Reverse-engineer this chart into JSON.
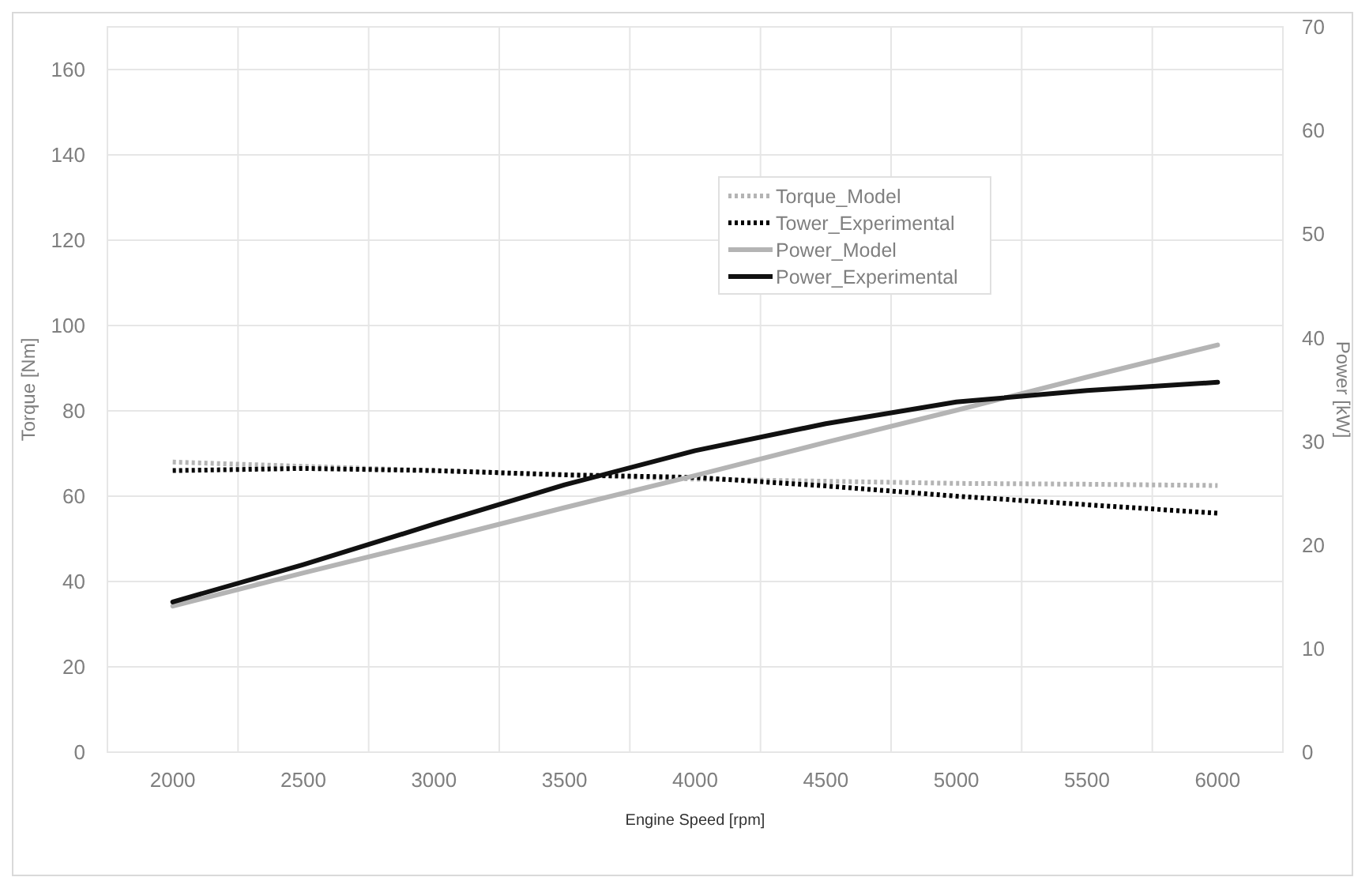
{
  "chart_data": {
    "type": "line",
    "xlabel": "Engine Speed [rpm]",
    "ylabel": "Torque [Nm]",
    "y2label": "Power [kW]",
    "categories": [
      "2000",
      "2500",
      "3000",
      "3500",
      "4000",
      "4500",
      "5000",
      "5500",
      "6000"
    ],
    "ylim": [
      0,
      170
    ],
    "yticks": [
      0,
      20,
      40,
      60,
      80,
      100,
      120,
      140,
      160
    ],
    "y2lim": [
      0,
      70
    ],
    "y2ticks": [
      0,
      10,
      20,
      30,
      40,
      50,
      60,
      70
    ],
    "grid": true,
    "legend": "top",
    "marker": "none",
    "series": [
      {
        "name": "Torque_Model",
        "color": "#b4b4b4",
        "line_style": "dotted",
        "values": [
          68,
          67,
          66,
          65,
          64,
          63.5,
          63,
          62.8,
          62.5
        ]
      },
      {
        "name": "Tower_Experimental",
        "color": "#000000",
        "line_style": "dotted",
        "values": [
          66,
          66.5,
          66,
          65,
          64.4,
          62.4,
          60,
          58,
          56
        ]
      },
      {
        "name": "Power_Model",
        "color": "#b4b4b4",
        "line_style": "solid",
        "axis": "y2",
        "values": [
          14.1,
          17.3,
          20.4,
          23.6,
          26.7,
          29.9,
          33,
          36.2,
          39.3
        ]
      },
      {
        "name": "Power_Experimental",
        "color": "#111111",
        "line_style": "solid",
        "axis": "y2",
        "values": [
          14.5,
          18.1,
          22,
          25.8,
          29.1,
          31.7,
          33.8,
          34.9,
          35.7
        ]
      }
    ]
  }
}
